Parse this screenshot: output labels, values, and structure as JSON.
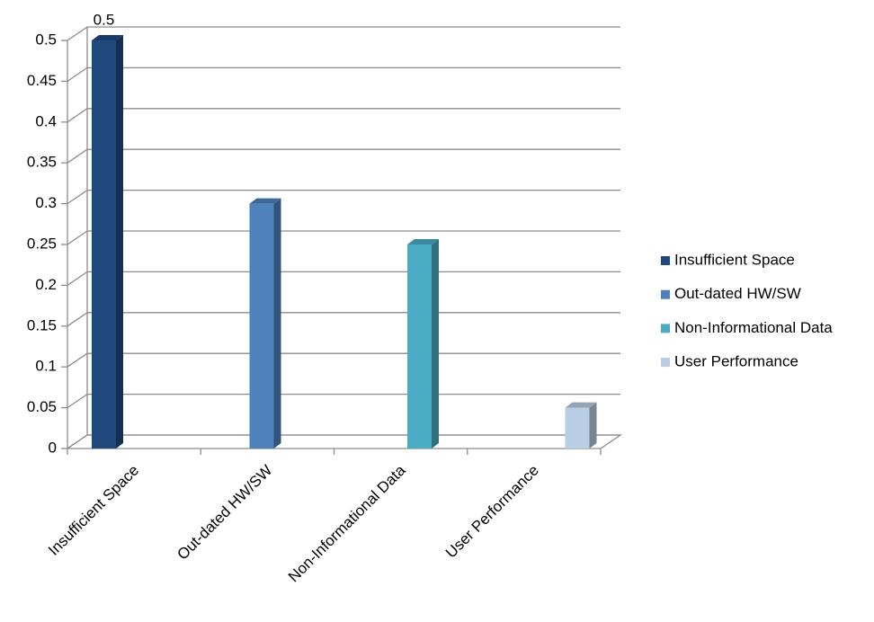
{
  "chart_data": {
    "type": "bar3d",
    "categories": [
      "Insufficient Space",
      "Out-dated HW/SW",
      "Non-Informational Data",
      "User Performance"
    ],
    "values": [
      0.5,
      0.3,
      0.25,
      0.05
    ],
    "colors": [
      "#1f497d",
      "#4f81bd",
      "#4bacc6",
      "#b9cde5"
    ],
    "data_labels": [
      true,
      false,
      false,
      false
    ],
    "ylim": [
      0,
      0.5
    ],
    "yticks": [
      0,
      0.05,
      0.1,
      0.15,
      0.2,
      0.25,
      0.3,
      0.35,
      0.4,
      0.45,
      0.5
    ],
    "grid": true,
    "legend": "right"
  }
}
